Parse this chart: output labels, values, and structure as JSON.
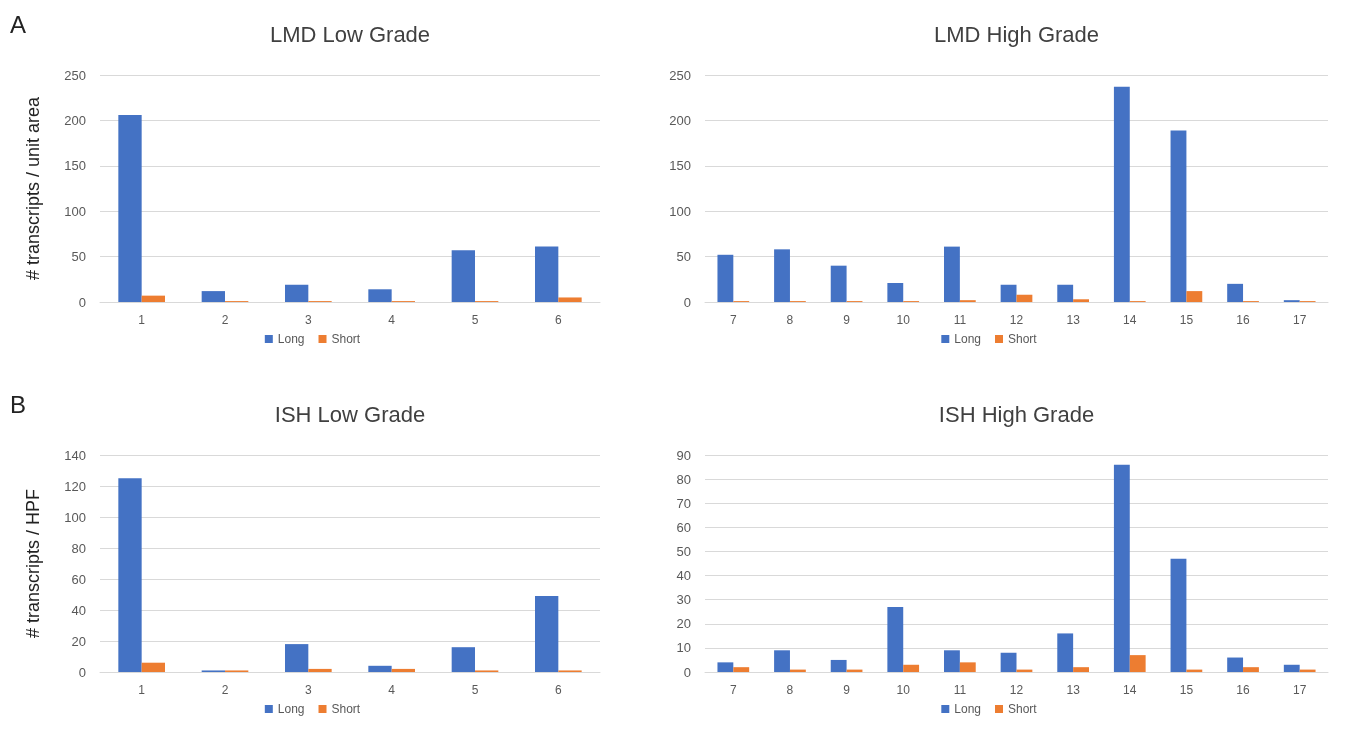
{
  "chart_data": [
    {
      "type": "bar",
      "title": "LMD Low Grade",
      "ylabel": "# transcripts / unit area",
      "annotations": [
        "A"
      ],
      "categories": [
        "1",
        "2",
        "3",
        "4",
        "5",
        "6"
      ],
      "series": [
        {
          "name": "Long",
          "color": "#4472c4",
          "values": [
            206,
            12,
            19,
            14,
            57,
            61
          ]
        },
        {
          "name": "Short",
          "color": "#ed7d31",
          "values": [
            7,
            1,
            1,
            1,
            1,
            5
          ]
        }
      ],
      "ylim": [
        0,
        250
      ],
      "yticks": [
        0,
        50,
        100,
        150,
        200,
        250
      ],
      "grid": "y",
      "legend": "bottom"
    },
    {
      "type": "bar",
      "title": "LMD High Grade",
      "categories": [
        "7",
        "8",
        "9",
        "10",
        "11",
        "12",
        "13",
        "14",
        "15",
        "16",
        "17"
      ],
      "series": [
        {
          "name": "Long",
          "color": "#4472c4",
          "values": [
            52,
            58,
            40,
            21,
            61,
            19,
            19,
            237,
            189,
            20,
            2
          ]
        },
        {
          "name": "Short",
          "color": "#ed7d31",
          "values": [
            1,
            1,
            1,
            1,
            2,
            8,
            3,
            1,
            12,
            1,
            1
          ]
        }
      ],
      "ylim": [
        0,
        250
      ],
      "yticks": [
        0,
        50,
        100,
        150,
        200,
        250
      ],
      "grid": "y",
      "legend": "bottom"
    },
    {
      "type": "bar",
      "title": "ISH Low Grade",
      "ylabel": "# transcripts / HPF",
      "annotations": [
        "B"
      ],
      "categories": [
        "1",
        "2",
        "3",
        "4",
        "5",
        "6"
      ],
      "series": [
        {
          "name": "Long",
          "color": "#4472c4",
          "values": [
            125,
            1,
            18,
            4,
            16,
            49
          ]
        },
        {
          "name": "Short",
          "color": "#ed7d31",
          "values": [
            6,
            1,
            2,
            2,
            1,
            1
          ]
        }
      ],
      "ylim": [
        0,
        140
      ],
      "yticks": [
        0,
        20,
        40,
        60,
        80,
        100,
        120,
        140
      ],
      "grid": "y",
      "legend": "bottom"
    },
    {
      "type": "bar",
      "title": "ISH High Grade",
      "categories": [
        "7",
        "8",
        "9",
        "10",
        "11",
        "12",
        "13",
        "14",
        "15",
        "16",
        "17"
      ],
      "series": [
        {
          "name": "Long",
          "color": "#4472c4",
          "values": [
            4,
            9,
            5,
            27,
            9,
            8,
            16,
            86,
            47,
            6,
            3
          ]
        },
        {
          "name": "Short",
          "color": "#ed7d31",
          "values": [
            2,
            1,
            1,
            3,
            4,
            1,
            2,
            7,
            1,
            2,
            1
          ]
        }
      ],
      "ylim": [
        0,
        90
      ],
      "yticks": [
        0,
        10,
        20,
        30,
        40,
        50,
        60,
        70,
        80,
        90
      ],
      "grid": "y",
      "legend": "bottom"
    }
  ]
}
